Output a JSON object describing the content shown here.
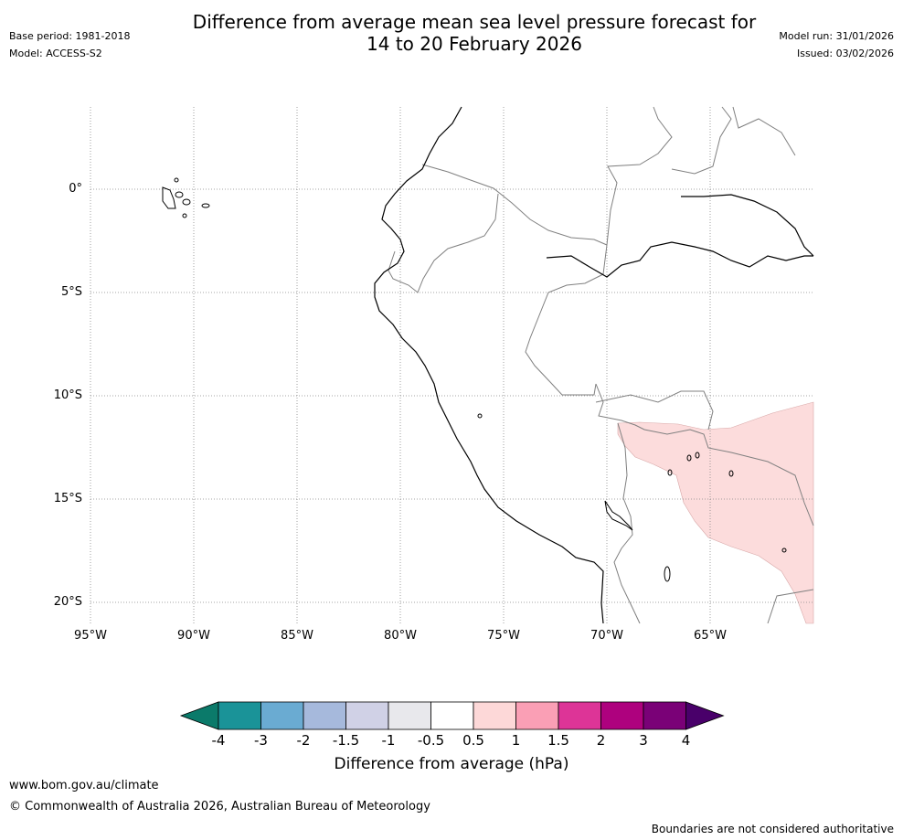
{
  "header": {
    "title_line1": "Difference from average mean sea level pressure forecast for",
    "title_line2": "14 to 20 February 2026",
    "base_period": "Base period: 1981-2018",
    "model": "Model: ACCESS-S2",
    "model_run": "Model run: 31/01/2026",
    "issued": "Issued: 03/02/2026"
  },
  "map": {
    "lat_labels": [
      "0°",
      "5°S",
      "10°S",
      "15°S",
      "20°S"
    ],
    "lon_labels": [
      "95°W",
      "90°W",
      "85°W",
      "80°W",
      "75°W",
      "70°W",
      "65°W"
    ],
    "region": "Western South America (Ecuador, Peru, western Bolivia, Galápagos)",
    "anomaly_region": {
      "category": "0.5 to 1 hPa",
      "color": "#fcdcdc"
    }
  },
  "colorbar": {
    "tick_labels": [
      "-4",
      "-3",
      "-2",
      "-1.5",
      "-1",
      "-0.5",
      "0.5",
      "1",
      "1.5",
      "2",
      "3",
      "4"
    ],
    "colors": [
      "#0b7a6a",
      "#1a9398",
      "#6aabd2",
      "#a6b9dc",
      "#d0d1e6",
      "#e8e8ec",
      "#ffffff",
      "#fdd8d8",
      "#fa9fb5",
      "#dd3497",
      "#ae017e",
      "#7a0177",
      "#49006a"
    ],
    "label": "Difference from average (hPa)"
  },
  "footer": {
    "website": "www.bom.gov.au/climate",
    "copyright": "© Commonwealth of Australia 2026, Australian Bureau of Meteorology",
    "disclaimer": "Boundaries are not considered authoritative"
  }
}
